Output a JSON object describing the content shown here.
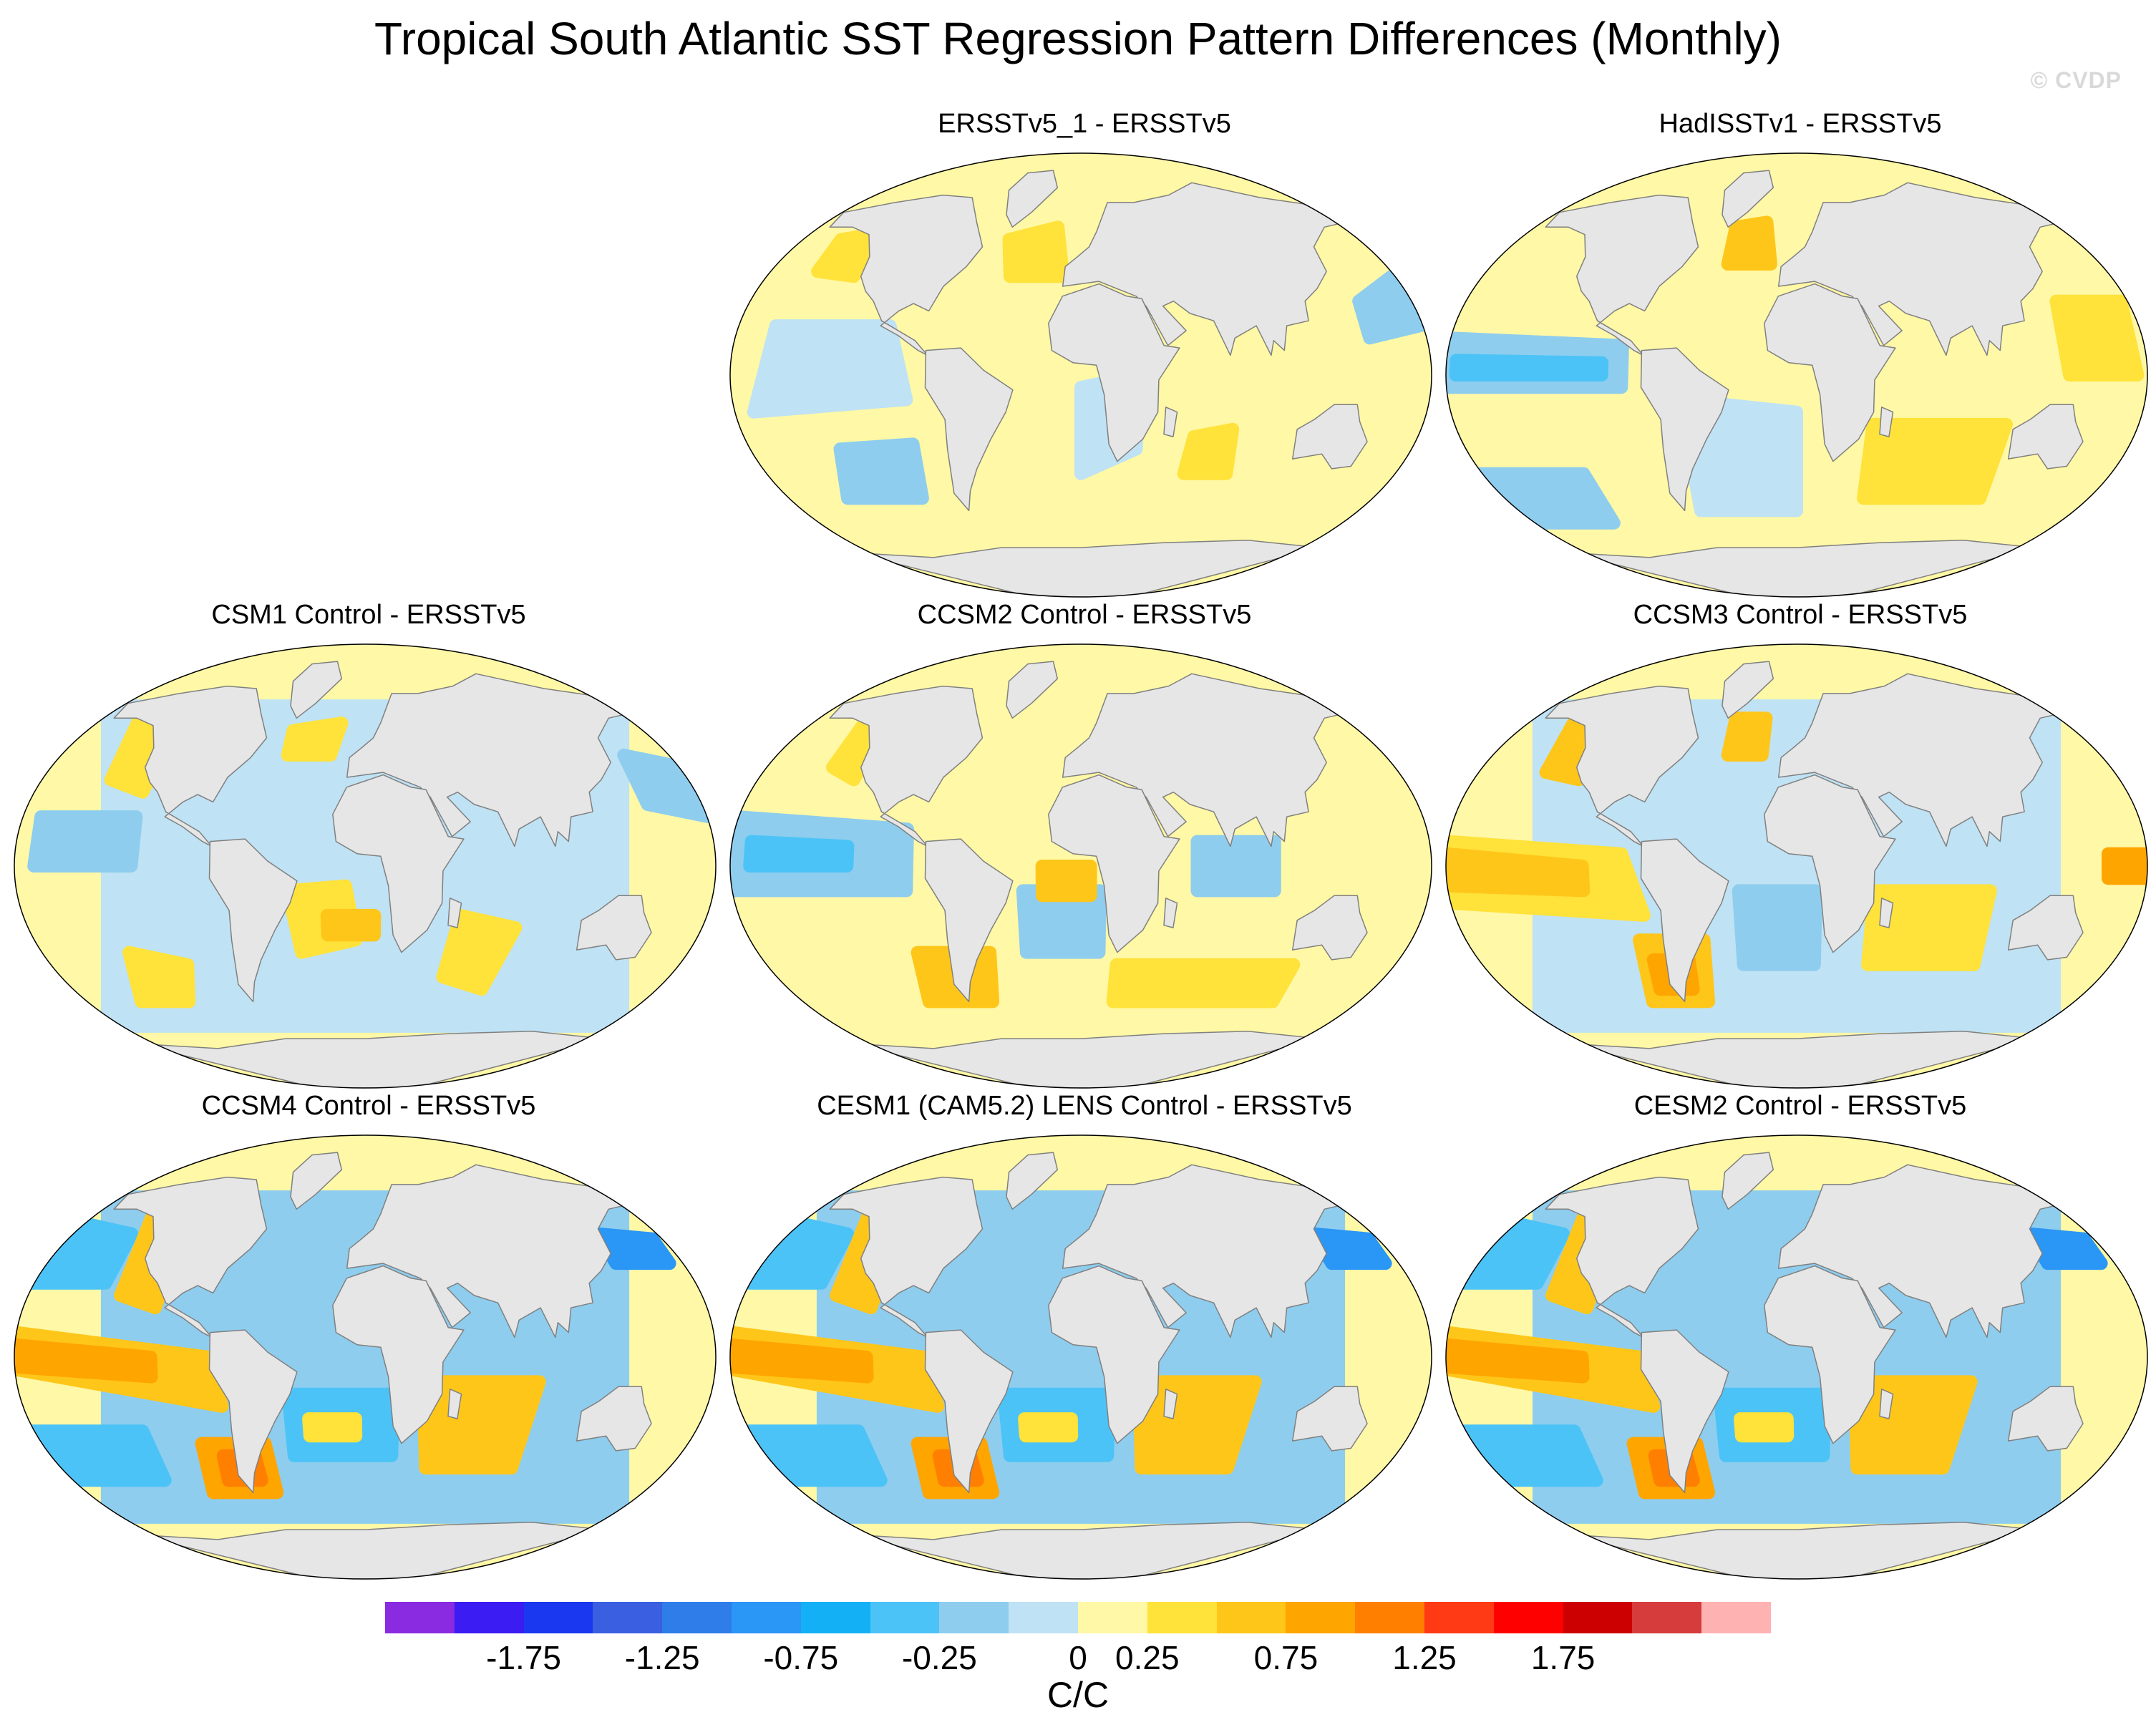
{
  "figure": {
    "title": "Tropical South Atlantic SST Regression Pattern Differences (Monthly)",
    "watermark": "© CVDP"
  },
  "panels": [
    {
      "name": "ERSSTv5_1 - ERSSTv5",
      "pattern": "weak"
    },
    {
      "name": "HadISSTv1 - ERSSTv5",
      "pattern": "noisy"
    },
    {
      "name": "CSM1 Control - ERSSTv5",
      "pattern": "cool"
    },
    {
      "name": "CCSM2 Control - ERSSTv5",
      "pattern": "mixed"
    },
    {
      "name": "CCSM3 Control - ERSSTv5",
      "pattern": "warm"
    },
    {
      "name": "CCSM4 Control - ERSSTv5",
      "pattern": "strong"
    },
    {
      "name": "CESM1 (CAM5.2) LENS Control - ERSSTv5",
      "pattern": "strong"
    },
    {
      "name": "CESM2 Control - ERSSTv5",
      "pattern": "strong"
    }
  ],
  "colorbar": {
    "colors": [
      "#8a2be2",
      "#3b1cf2",
      "#1a38f0",
      "#3a5fe0",
      "#2e7de8",
      "#2a96f5",
      "#14b0f5",
      "#4cc3f7",
      "#8ecdee",
      "#bfe2f4",
      "#fff8a6",
      "#ffe23a",
      "#ffc61a",
      "#ffa500",
      "#ff7f00",
      "#ff3a14",
      "#ff0000",
      "#cc0000",
      "#d63c3c",
      "#ffb2b2"
    ],
    "tick_labels": [
      "-1.75",
      "-1.25",
      "-0.75",
      "-0.25",
      "0",
      "0.25",
      "0.75",
      "1.25",
      "1.75"
    ],
    "tick_boundaries": [
      2,
      4,
      6,
      8,
      10,
      11,
      13,
      15,
      17
    ],
    "units": "C/C"
  }
}
